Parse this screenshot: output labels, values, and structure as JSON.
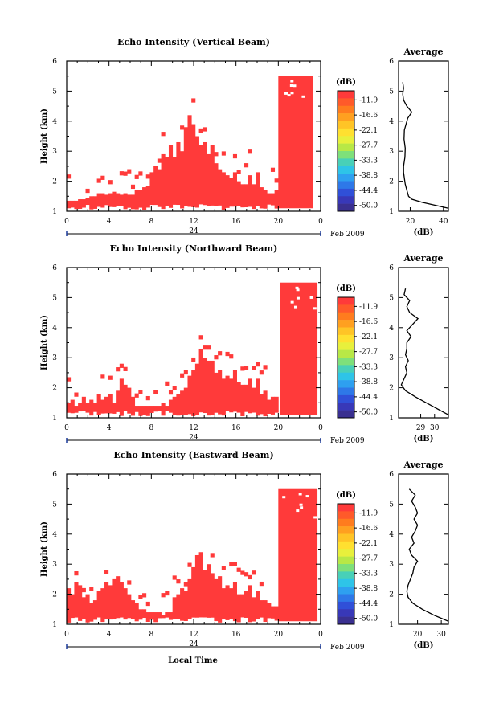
{
  "figure": {
    "xlabel": "Local Time",
    "date_label": "Feb 2009",
    "day_label": "24"
  },
  "chart_data": [
    {
      "type": "heatmap",
      "title": "Echo Intensity (Vertical Beam)",
      "ylabel": "Height (km)",
      "xlabel": "Local Time",
      "x_ticks": [
        "0",
        "4",
        "8",
        "12",
        "16",
        "20",
        "0"
      ],
      "y_ticks": [
        "1",
        "2",
        "3",
        "4",
        "5",
        "6"
      ],
      "xlim": [
        0,
        24
      ],
      "ylim": [
        1,
        6
      ],
      "colorbar": {
        "label": "(dB)",
        "ticks": [
          "-11.9",
          "-16.6",
          "-22.1",
          "-27.7",
          "-33.3",
          "-38.8",
          "-44.4",
          "-50.0"
        ],
        "colors": [
          "#ff3a3a",
          "#ff5a2a",
          "#ff7c1e",
          "#ffa020",
          "#ffc426",
          "#ffe030",
          "#e8f03c",
          "#b8e846",
          "#7ee07a",
          "#48d0b8",
          "#2ec4e8",
          "#2ea0f0",
          "#2e78e8",
          "#3050d8",
          "#3838b8",
          "#3a3090"
        ]
      },
      "echo_tops": [
        1.35,
        1.35,
        1.35,
        1.4,
        1.4,
        1.45,
        1.5,
        1.5,
        1.6,
        1.6,
        1.55,
        1.6,
        1.65,
        1.6,
        1.55,
        1.6,
        1.55,
        1.55,
        1.7,
        1.7,
        1.8,
        1.85,
        2.3,
        2.5,
        2.4,
        2.9,
        2.8,
        3.2,
        2.8,
        3.3,
        3.0,
        3.8,
        4.2,
        3.9,
        3.5,
        3.2,
        3.3,
        2.9,
        3.2,
        2.6,
        2.4,
        2.3,
        2.2,
        2.1,
        2.3,
        2.0,
        1.9,
        1.9,
        2.2,
        1.9,
        2.3,
        1.8,
        1.7,
        1.6,
        1.6,
        1.7
      ],
      "storm": {
        "x_start": 20.0,
        "x_end": 23.3,
        "top_km": 5.5
      },
      "average_profile": {
        "title": "Average",
        "xlabel": "(dB)",
        "x_ticks": [
          "20",
          "40"
        ],
        "xlim": [
          13,
          43
        ],
        "ylim": [
          1,
          6
        ],
        "height_km": [
          1.1,
          1.2,
          1.3,
          1.4,
          1.5,
          1.7,
          1.9,
          2.1,
          2.3,
          2.5,
          2.8,
          3.1,
          3.4,
          3.7,
          3.9,
          4.1,
          4.3,
          4.5,
          4.7,
          4.9,
          5.1,
          5.3
        ],
        "db": [
          43,
          35,
          27,
          21,
          19,
          18,
          17,
          16.5,
          16,
          16,
          16.8,
          17,
          16.3,
          16.5,
          17.5,
          18.5,
          21,
          18,
          16,
          15.5,
          16,
          15.5
        ]
      }
    },
    {
      "type": "heatmap",
      "title": "Echo Intensity (Northward Beam)",
      "ylabel": "Height (km)",
      "xlabel": "Local Time",
      "x_ticks": [
        "0",
        "4",
        "8",
        "12",
        "16",
        "20",
        "0"
      ],
      "y_ticks": [
        "1",
        "2",
        "3",
        "4",
        "5",
        "6"
      ],
      "xlim": [
        0,
        24
      ],
      "ylim": [
        1,
        6
      ],
      "colorbar": {
        "label": "(dB)",
        "ticks": [
          "-11.9",
          "-16.6",
          "-22.1",
          "-27.7",
          "-33.3",
          "-38.8",
          "-44.4",
          "-50.0"
        ],
        "colors": [
          "#ff3a3a",
          "#ff5a2a",
          "#ff7c1e",
          "#ffa020",
          "#ffc426",
          "#ffe030",
          "#e8f03c",
          "#b8e846",
          "#7ee07a",
          "#48d0b8",
          "#2ec4e8",
          "#2ea0f0",
          "#2e78e8",
          "#3050d8",
          "#3838b8",
          "#3a3090"
        ]
      },
      "echo_tops": [
        1.5,
        1.6,
        1.4,
        1.5,
        1.7,
        1.5,
        1.6,
        1.5,
        1.8,
        1.6,
        1.7,
        1.8,
        1.5,
        1.9,
        2.3,
        2.1,
        2.0,
        1.7,
        1.4,
        1.4,
        1.4,
        1.4,
        1.4,
        1.4,
        1.4,
        1.5,
        1.4,
        1.6,
        1.7,
        1.8,
        1.9,
        2.0,
        2.4,
        2.6,
        2.8,
        3.3,
        3.0,
        2.9,
        2.9,
        2.5,
        2.6,
        2.3,
        2.4,
        2.3,
        2.6,
        2.2,
        2.1,
        2.1,
        2.3,
        2.0,
        2.3,
        1.8,
        1.9,
        1.6,
        1.7,
        1.7
      ],
      "storm": {
        "x_start": 20.2,
        "x_end": 23.7,
        "top_km": 5.5
      },
      "average_profile": {
        "title": "Average",
        "xlabel": "(dB)",
        "x_ticks": [
          "29",
          "30"
        ],
        "xlim": [
          27.4,
          31.0
        ],
        "ylim": [
          1,
          6
        ],
        "height_km": [
          1.1,
          1.3,
          1.5,
          1.7,
          1.9,
          2.1,
          2.3,
          2.5,
          2.7,
          2.9,
          3.1,
          3.3,
          3.5,
          3.7,
          3.9,
          4.1,
          4.3,
          4.5,
          4.7,
          4.9,
          5.1,
          5.3
        ],
        "db": [
          31.0,
          30.2,
          29.4,
          28.6,
          27.9,
          27.6,
          27.8,
          28.0,
          27.9,
          28.1,
          27.9,
          28.0,
          28.0,
          28.3,
          28.0,
          28.4,
          28.8,
          28.2,
          28.0,
          28.2,
          27.8,
          27.9
        ]
      }
    },
    {
      "type": "heatmap",
      "title": "Echo Intensity (Eastward Beam)",
      "ylabel": "Height (km)",
      "xlabel": "Local Time",
      "x_ticks": [
        "0",
        "4",
        "8",
        "12",
        "16",
        "20",
        "0"
      ],
      "y_ticks": [
        "1",
        "2",
        "3",
        "4",
        "5",
        "6"
      ],
      "xlim": [
        0,
        24
      ],
      "ylim": [
        1,
        6
      ],
      "colorbar": {
        "label": "(dB)",
        "ticks": [
          "-11.9",
          "-16.6",
          "-22.1",
          "-27.7",
          "-33.3",
          "-38.8",
          "-44.4",
          "-50.0"
        ],
        "colors": [
          "#ff3a3a",
          "#ff5a2a",
          "#ff7c1e",
          "#ffa020",
          "#ffc426",
          "#ffe030",
          "#e8f03c",
          "#b8e846",
          "#7ee07a",
          "#48d0b8",
          "#2ec4e8",
          "#2ea0f0",
          "#2e78e8",
          "#3050d8",
          "#3838b8",
          "#3a3090"
        ]
      },
      "echo_tops": [
        2.2,
        2.0,
        2.4,
        2.3,
        1.9,
        2.0,
        1.7,
        1.8,
        2.1,
        2.2,
        2.4,
        2.3,
        2.5,
        2.6,
        2.4,
        2.2,
        2.0,
        1.8,
        1.7,
        1.5,
        1.5,
        1.4,
        1.4,
        1.4,
        1.4,
        1.3,
        1.4,
        1.4,
        1.9,
        2.0,
        2.2,
        2.1,
        2.5,
        2.9,
        3.3,
        3.4,
        2.8,
        3.0,
        2.7,
        2.5,
        2.6,
        2.2,
        2.3,
        2.2,
        2.4,
        2.0,
        2.0,
        2.1,
        2.3,
        1.9,
        2.1,
        1.8,
        1.8,
        1.7,
        1.6,
        1.6
      ],
      "storm": {
        "x_start": 20.0,
        "x_end": 23.7,
        "top_km": 5.5
      },
      "average_profile": {
        "title": "Average",
        "xlabel": "(dB)",
        "x_ticks": [
          "20",
          "30"
        ],
        "xlim": [
          12,
          33
        ],
        "ylim": [
          1,
          6
        ],
        "height_km": [
          1.1,
          1.2,
          1.3,
          1.5,
          1.7,
          1.9,
          2.1,
          2.3,
          2.5,
          2.7,
          2.9,
          3.1,
          3.3,
          3.5,
          3.7,
          3.9,
          4.1,
          4.3,
          4.5,
          4.7,
          4.9,
          5.1,
          5.3,
          5.5
        ],
        "db": [
          33,
          30,
          27,
          22,
          18,
          16,
          15.5,
          16,
          17,
          18,
          18.5,
          20,
          17.5,
          16.5,
          18.5,
          17.5,
          19,
          20,
          18.5,
          20,
          19,
          17.5,
          19,
          16.5
        ]
      }
    }
  ]
}
